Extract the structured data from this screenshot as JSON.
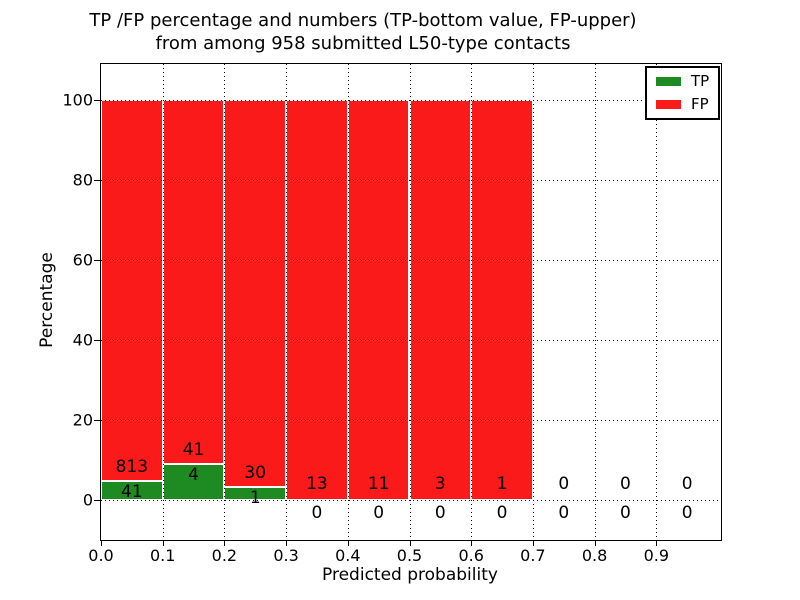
{
  "figure": {
    "background": "#ffffff"
  },
  "title": {
    "line1": "TP /FP percentage and numbers (TP-bottom value, FP-upper)",
    "line2": "from among 958 submitted L50-type contacts"
  },
  "axes": {
    "xlabel": "Predicted probability",
    "ylabel": "Percentage",
    "xtick_labels": [
      "0.0",
      "0.1",
      "0.2",
      "0.3",
      "0.4",
      "0.5",
      "0.6",
      "0.7",
      "0.8",
      "0.9"
    ],
    "ytick_labels": [
      "0",
      "20",
      "40",
      "60",
      "80",
      "100"
    ],
    "grid_style": "dotted"
  },
  "legend": {
    "position": "upper-right",
    "items": [
      {
        "label": "TP",
        "color": "#1e8b22"
      },
      {
        "label": "FP",
        "color": "#fa1a1a"
      }
    ]
  },
  "colors": {
    "tp": "#1e8b22",
    "fp": "#fa1a1a",
    "bar_edge": "#ffffff",
    "text": "#000000",
    "spine": "#000000"
  },
  "chart_data": {
    "type": "bar",
    "stacked": true,
    "percent_normalized": true,
    "title": "TP /FP percentage and numbers (TP-bottom value, FP-upper) from among 958 submitted L50-type contacts",
    "xlabel": "Predicted probability",
    "ylabel": "Percentage",
    "total_contacts": 958,
    "bin_edges": [
      0.0,
      0.1,
      0.2,
      0.3,
      0.4,
      0.5,
      0.6,
      0.7,
      0.8,
      0.9,
      1.0
    ],
    "series": [
      {
        "name": "TP",
        "color": "#1e8b22",
        "counts": [
          41,
          4,
          1,
          0,
          0,
          0,
          0,
          0,
          0,
          0
        ]
      },
      {
        "name": "FP",
        "color": "#fa1a1a",
        "counts": [
          813,
          41,
          30,
          13,
          11,
          3,
          1,
          0,
          0,
          0
        ]
      }
    ],
    "xticks": [
      0.0,
      0.1,
      0.2,
      0.3,
      0.4,
      0.5,
      0.6,
      0.7,
      0.8,
      0.9
    ],
    "yticks": [
      0,
      20,
      40,
      60,
      80,
      100
    ],
    "xlim": [
      0,
      1.005
    ],
    "ylim": [
      -10,
      109
    ],
    "grid": true,
    "legend_position": "upper right"
  }
}
